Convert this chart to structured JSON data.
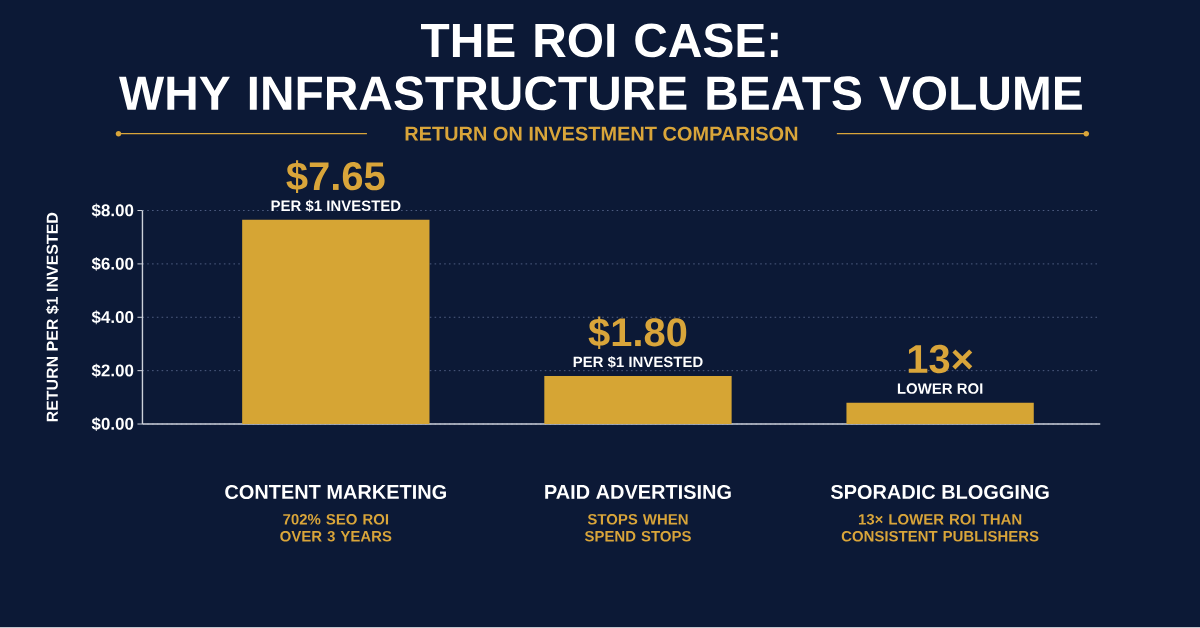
{
  "chart_data": {
    "type": "bar",
    "title": "THE ROI CASE:\nWHY INFRASTRUCTURE BEATS VOLUME",
    "subtitle": "RETURN ON INVESTMENT COMPARISON",
    "ylabel": "RETURN PER $1 INVESTED",
    "categories": [
      "CONTENT MARKETING",
      "PAID ADVERTISING",
      "SPORADIC BLOGGING"
    ],
    "values": [
      7.65,
      1.8,
      0.8
    ],
    "color": "#d6a534",
    "value_labels": [
      "$7.65",
      "$1.80",
      null
    ],
    "ylim": [
      0,
      8
    ],
    "yticks": [
      {
        "value": 0,
        "label": "$0.00"
      },
      {
        "value": 2,
        "label": "$2.00"
      },
      {
        "value": 4,
        "label": "$4.00"
      },
      {
        "value": 6,
        "label": "$6.00"
      },
      {
        "value": 8,
        "label": "$8.00"
      }
    ],
    "grid": "y",
    "annotations": [
      {
        "text": "PER $1 INVESTED",
        "x": "CONTENT MARKETING",
        "y": 7.65
      },
      {
        "text": "PER $1 INVESTED",
        "x": "PAID ADVERTISING",
        "y": 1.8
      },
      {
        "text": "13×",
        "x": "SPORADIC BLOGGING",
        "y": 0.8
      },
      {
        "text": "LOWER ROI",
        "x": "SPORADIC BLOGGING",
        "y": 0.8
      },
      "702% SEO ROI\nOVER 3 YEARS",
      "STOPS WHEN\nSPEND STOPS",
      "13× LOWER ROI THAN\nCONSISTENT PUBLISHERS"
    ]
  }
}
